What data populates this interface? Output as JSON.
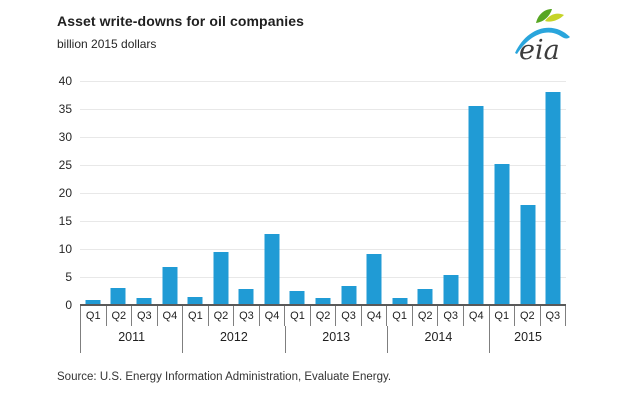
{
  "header": {
    "title": "Asset write-downs for oil companies",
    "subtitle": "billion 2015 dollars",
    "logo_text": "eia"
  },
  "footer": {
    "source": "Source:  U.S. Energy Information Administration, Evaluate Energy."
  },
  "colors": {
    "bar": "#209bd5",
    "gridline": "#e8e8e8",
    "axis_line": "#595959",
    "separator": "#7f7f7f",
    "logo_swoosh_blue": "#29a5dc",
    "logo_leaf_green": "#57a623",
    "logo_leaf_yellow": "#c6d429"
  },
  "chart_data": {
    "type": "bar",
    "title": "Asset write-downs for oil companies",
    "ylabel": "billion 2015 dollars",
    "xlabel": "",
    "ylim": [
      0,
      40
    ],
    "ytick_step": 5,
    "grid": true,
    "legend": "none",
    "groups": [
      {
        "year": "2011",
        "quarters": [
          "Q1",
          "Q2",
          "Q3",
          "Q4"
        ],
        "values": [
          0.9,
          3.1,
          1.2,
          6.8
        ]
      },
      {
        "year": "2012",
        "quarters": [
          "Q1",
          "Q2",
          "Q3",
          "Q4"
        ],
        "values": [
          1.4,
          9.4,
          2.9,
          12.7
        ]
      },
      {
        "year": "2013",
        "quarters": [
          "Q1",
          "Q2",
          "Q3",
          "Q4"
        ],
        "values": [
          2.5,
          1.3,
          3.4,
          9.1
        ]
      },
      {
        "year": "2014",
        "quarters": [
          "Q1",
          "Q2",
          "Q3",
          "Q4"
        ],
        "values": [
          1.3,
          2.9,
          5.4,
          35.6
        ]
      },
      {
        "year": "2015",
        "quarters": [
          "Q1",
          "Q2",
          "Q3"
        ],
        "values": [
          25.1,
          17.9,
          38.0
        ]
      }
    ],
    "source": "Source:  U.S. Energy Information Administration, Evaluate Energy."
  }
}
